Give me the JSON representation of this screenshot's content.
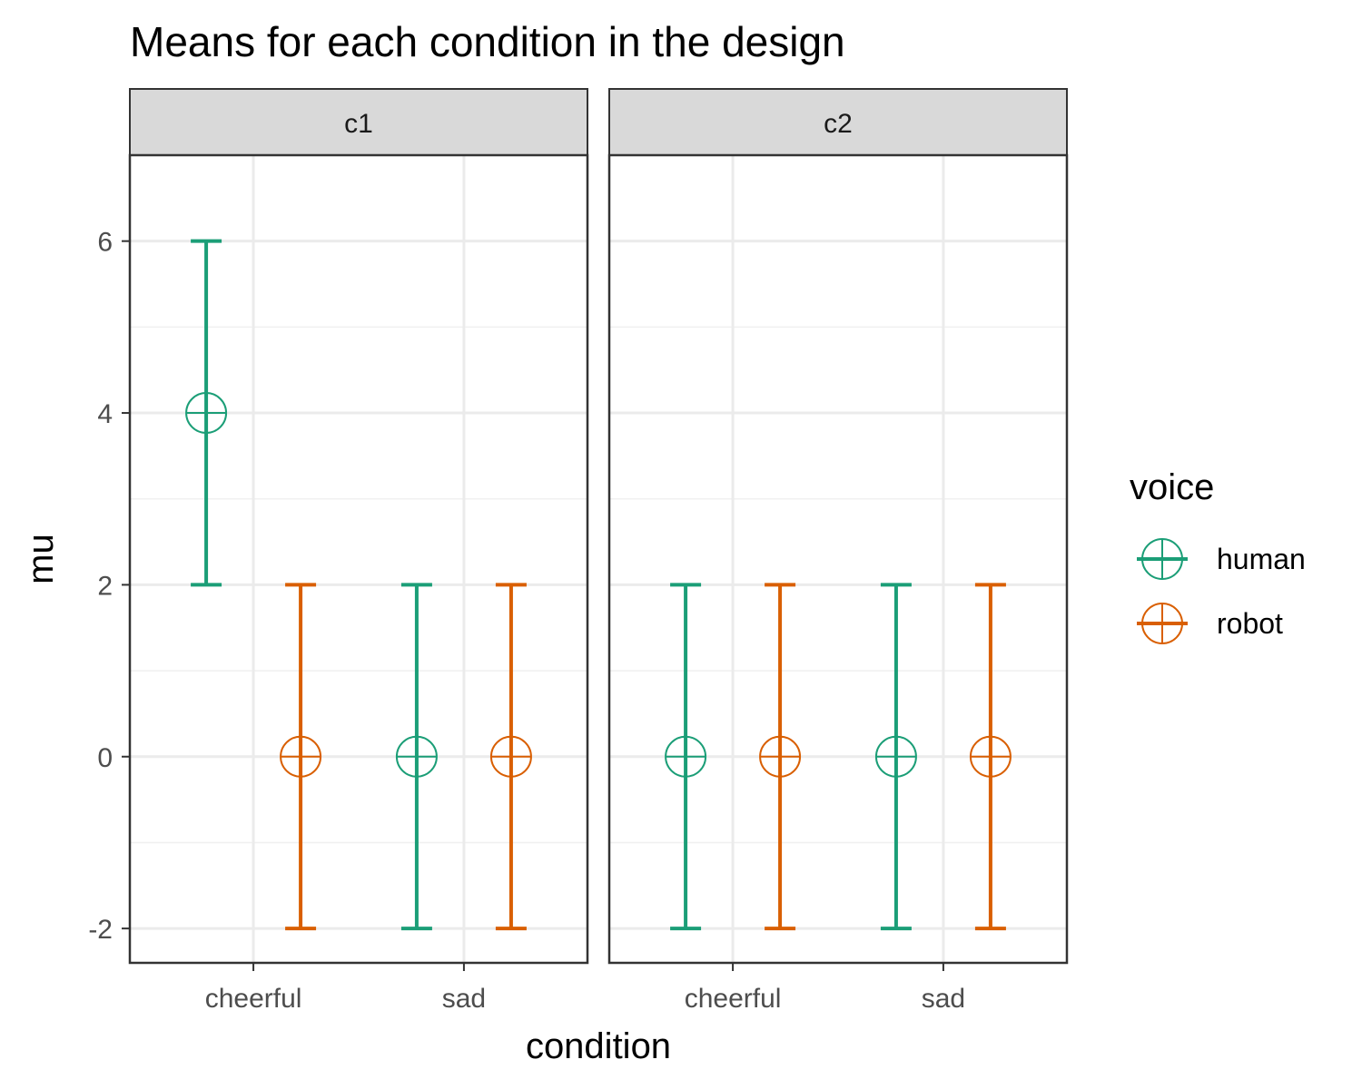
{
  "chart_data": {
    "type": "errorbar",
    "title": "Means for each condition in the design",
    "xlabel": "condition",
    "ylabel": "mu",
    "ylim": [
      -2.4,
      7.0
    ],
    "y_ticks": [
      "-2",
      "0",
      "2",
      "4",
      "6"
    ],
    "y_tick_values": [
      -2,
      0,
      2,
      4,
      6
    ],
    "grid": true,
    "categories": [
      "cheerful",
      "sad"
    ],
    "facets": [
      {
        "label": "c1",
        "series": [
          {
            "name": "human",
            "mean": [
              4,
              0
            ],
            "lower": [
              2,
              -2
            ],
            "upper": [
              6,
              2
            ]
          },
          {
            "name": "robot",
            "mean": [
              0,
              0
            ],
            "lower": [
              -2,
              -2
            ],
            "upper": [
              2,
              2
            ]
          }
        ]
      },
      {
        "label": "c2",
        "series": [
          {
            "name": "human",
            "mean": [
              0,
              0
            ],
            "lower": [
              -2,
              -2
            ],
            "upper": [
              2,
              2
            ]
          },
          {
            "name": "robot",
            "mean": [
              0,
              0
            ],
            "lower": [
              -2,
              -2
            ],
            "upper": [
              2,
              2
            ]
          }
        ]
      }
    ],
    "legend": {
      "title": "voice",
      "position": "right",
      "items": [
        "human",
        "robot"
      ]
    },
    "colors": {
      "human": "#1b9e77",
      "robot": "#d95f02"
    }
  }
}
